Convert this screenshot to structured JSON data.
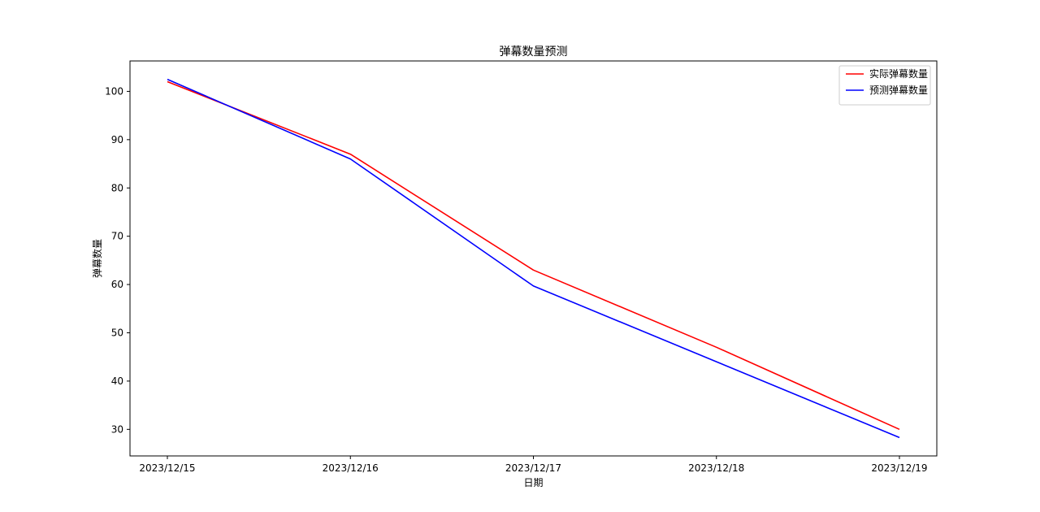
{
  "chart_data": {
    "type": "line",
    "title": "弹幕数量预测",
    "xlabel": "日期",
    "ylabel": "弹幕数量",
    "x": [
      "2023/12/15",
      "2023/12/16",
      "2023/12/17",
      "2023/12/18",
      "2023/12/19"
    ],
    "series": [
      {
        "name": "实际弹幕数量",
        "color": "#ff0000",
        "values": [
          102,
          87,
          63,
          47,
          30
        ]
      },
      {
        "name": "预测弹幕数量",
        "color": "#0000ff",
        "values": [
          102.5,
          86,
          59.7,
          44,
          28.3
        ]
      }
    ],
    "ylim": [
      24.5,
      106.3
    ],
    "yticks": [
      30,
      40,
      50,
      60,
      70,
      80,
      90,
      100
    ],
    "grid": false,
    "legend_position": "top-right"
  }
}
